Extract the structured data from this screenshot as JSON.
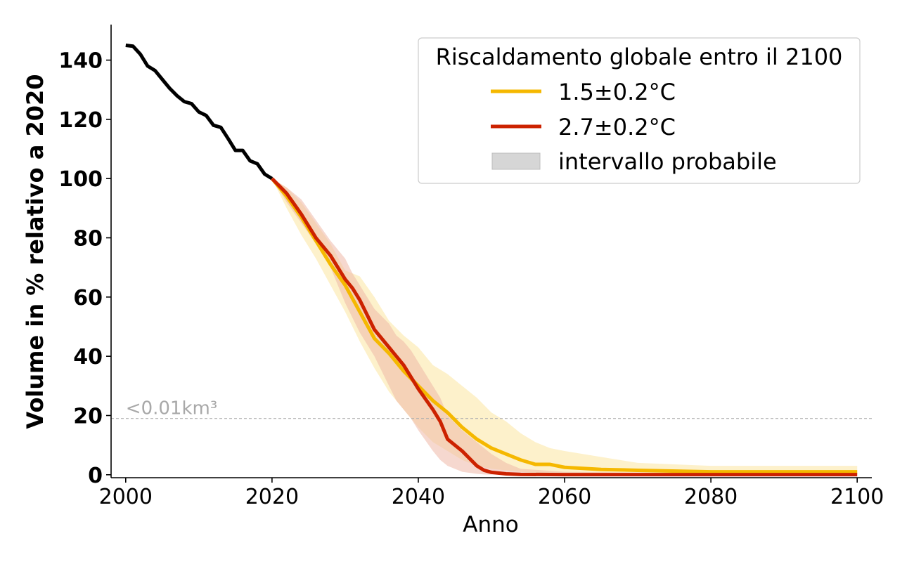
{
  "chart_data": {
    "type": "line",
    "xlabel": "Anno",
    "ylabel": "Volume in % relativo a 2020",
    "xlim": [
      1998,
      2102
    ],
    "ylim": [
      -1,
      152
    ],
    "xticks": [
      2000,
      2020,
      2040,
      2060,
      2080,
      2100
    ],
    "yticks": [
      0,
      20,
      40,
      60,
      80,
      100,
      120,
      140
    ],
    "grid": false,
    "legend": {
      "title": "Riscaldamento globale entro il 2100",
      "position": "top-right",
      "entries": [
        "1.5±0.2°C",
        "2.7±0.2°C",
        "intervallo probabile"
      ]
    },
    "reference_line": {
      "y": 19,
      "label": "<0.01km³",
      "style": "dashed",
      "color": "#b0b0b0"
    },
    "historical": {
      "color": "#000000",
      "x": [
        2000,
        2001,
        2002,
        2003,
        2004,
        2005,
        2006,
        2007,
        2008,
        2009,
        2010,
        2011,
        2012,
        2013,
        2014,
        2015,
        2016,
        2017,
        2018,
        2019,
        2020
      ],
      "y": [
        145,
        144.7,
        142,
        138,
        136.5,
        133.5,
        130.5,
        128,
        126,
        125.3,
        122.5,
        121.3,
        118,
        117.3,
        113.5,
        109.5,
        109.5,
        106,
        105,
        101.5,
        100
      ]
    },
    "series": [
      {
        "name": "1.5±0.2°C",
        "color": "#f5b800",
        "band_color": "#fce7a8",
        "x": [
          2020,
          2022,
          2024,
          2026,
          2028,
          2030,
          2032,
          2034,
          2036,
          2038,
          2040,
          2042,
          2044,
          2046,
          2048,
          2050,
          2052,
          2054,
          2056,
          2058,
          2060,
          2065,
          2070,
          2080,
          2090,
          2100
        ],
        "y": [
          100,
          94,
          87,
          79,
          71,
          64,
          55,
          46,
          41,
          35,
          30,
          25,
          21,
          16,
          12,
          9,
          7,
          5,
          3.5,
          3.5,
          2.5,
          1.8,
          1.5,
          1,
          1,
          1
        ],
        "lower": [
          100,
          90,
          81,
          73,
          64,
          55,
          45,
          36,
          28,
          22,
          16,
          11,
          8,
          5,
          3,
          2,
          1.5,
          1,
          0.5,
          0.3,
          0.2,
          0.1,
          0.1,
          0.1,
          0.1,
          0.1
        ],
        "upper": [
          100,
          97,
          92,
          85,
          78,
          69,
          67,
          60,
          52,
          47,
          43,
          37,
          34,
          30,
          26,
          21,
          18,
          14,
          11,
          9,
          8,
          6,
          4,
          3,
          3,
          3
        ]
      },
      {
        "name": "2.7±0.2°C",
        "color": "#cc2200",
        "band_color": "#efb8a8",
        "x": [
          2020,
          2022,
          2024,
          2026,
          2028,
          2030,
          2031,
          2032,
          2034,
          2036,
          2037,
          2038,
          2039,
          2040,
          2042,
          2043,
          2044,
          2046,
          2048,
          2049,
          2050,
          2052,
          2054,
          2060,
          2080,
          2100
        ],
        "y": [
          100,
          95,
          88,
          80,
          74,
          66,
          63,
          59,
          49,
          43,
          40,
          37,
          33,
          29,
          22,
          18,
          12,
          8,
          3,
          1.5,
          0.8,
          0.3,
          0.1,
          0.05,
          0.05,
          0.05
        ],
        "lower": [
          100,
          92,
          85,
          78,
          70,
          58,
          53,
          48,
          40,
          30,
          25,
          22,
          19,
          15,
          8,
          5,
          3,
          1,
          0.3,
          0.1,
          0.05,
          0,
          0,
          0,
          0,
          0
        ],
        "upper": [
          100,
          97,
          93,
          86,
          79,
          73,
          68,
          64,
          56,
          51,
          47,
          45,
          42,
          38,
          30,
          26,
          20,
          15,
          11,
          9,
          7,
          4,
          2,
          1,
          0.5,
          0.5
        ]
      }
    ]
  }
}
